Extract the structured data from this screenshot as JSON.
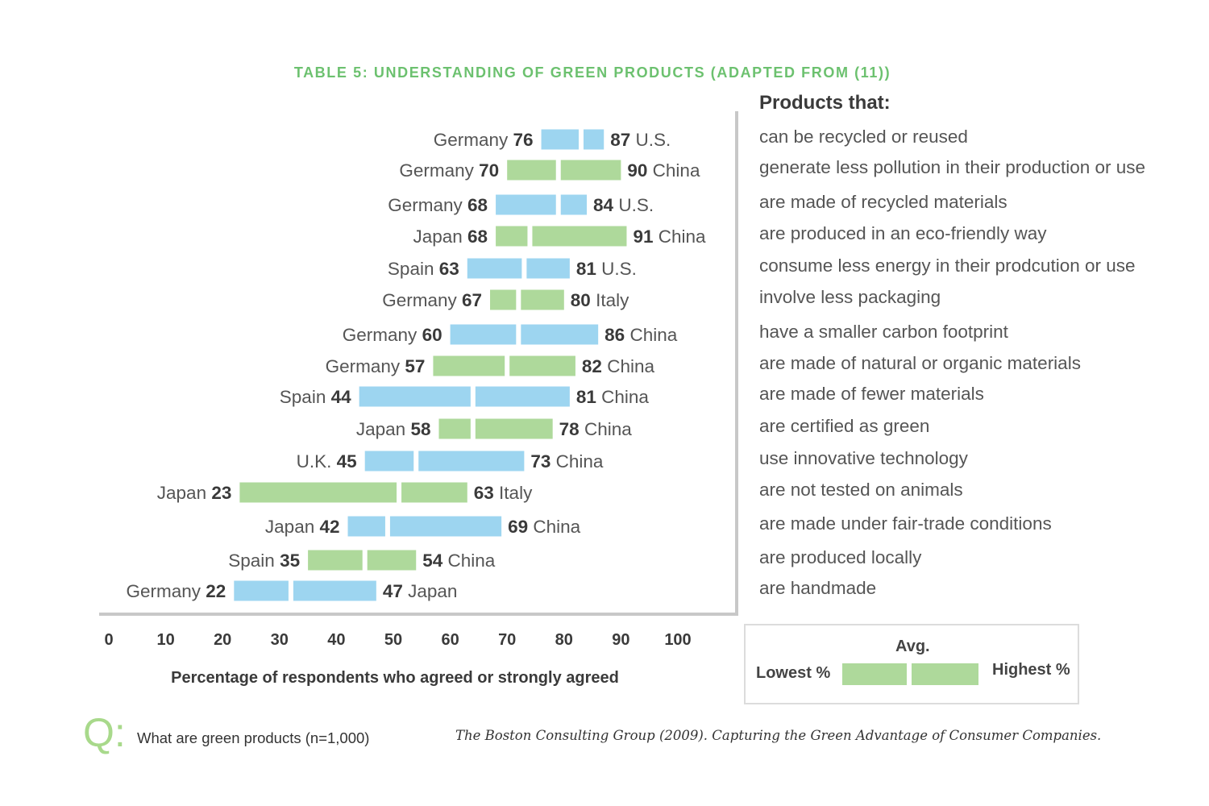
{
  "title": "TABLE 5: UNDERSTANDING OF GREEN PRODUCTS (ADAPTED FROM (11))",
  "panel_header": "Products that:",
  "legend": {
    "avg": "Avg.",
    "lowest": "Lowest %",
    "highest": "Highest %"
  },
  "question": {
    "glyph": "Q:",
    "text": "What are green products (n=1,000)"
  },
  "source": "The Boston Consulting Group (2009). Capturing the Green Advantage of Consumer Companies.",
  "colors": {
    "blue": "#9dd5f0",
    "green": "#aed99b",
    "title": "#6cc16f",
    "axis": "#c8c8c8"
  },
  "chart_data": {
    "type": "bar",
    "orientation": "horizontal",
    "title": "TABLE 5: UNDERSTANDING OF GREEN PRODUCTS (ADAPTED FROM (11))",
    "xlabel": "Percentage of respondents who agreed or strongly agreed",
    "ylabel": "",
    "xlim": [
      0,
      100
    ],
    "xticks": [
      0,
      10,
      20,
      30,
      40,
      50,
      60,
      70,
      80,
      90,
      100
    ],
    "grid": false,
    "rows": [
      {
        "category": "can be recycled or reused",
        "low_country": "Germany",
        "low": 76,
        "avg": 83,
        "high": 87,
        "high_country": "U.S.",
        "color": "blue"
      },
      {
        "category": "generate less pollution in their production or use",
        "low_country": "Germany",
        "low": 70,
        "avg": 79,
        "high": 90,
        "high_country": "China",
        "color": "green"
      },
      {
        "category": "are made of recycled materials",
        "low_country": "Germany",
        "low": 68,
        "avg": 79,
        "high": 84,
        "high_country": "U.S.",
        "color": "blue"
      },
      {
        "category": "are produced in an eco-friendly way",
        "low_country": "Japan",
        "low": 68,
        "avg": 74,
        "high": 91,
        "high_country": "China",
        "color": "green"
      },
      {
        "category": "consume less energy in their prodcution or use",
        "low_country": "Spain",
        "low": 63,
        "avg": 73,
        "high": 81,
        "high_country": "U.S.",
        "color": "blue"
      },
      {
        "category": "involve less packaging",
        "low_country": "Germany",
        "low": 67,
        "avg": 72,
        "high": 80,
        "high_country": "Italy",
        "color": "green"
      },
      {
        "category": "have a smaller carbon footprint",
        "low_country": "Germany",
        "low": 60,
        "avg": 72,
        "high": 86,
        "high_country": "China",
        "color": "blue"
      },
      {
        "category": "are made of natural or organic materials",
        "low_country": "Germany",
        "low": 57,
        "avg": 70,
        "high": 82,
        "high_country": "China",
        "color": "green"
      },
      {
        "category": "are made of fewer materials",
        "low_country": "Spain",
        "low": 44,
        "avg": 64,
        "high": 81,
        "high_country": "China",
        "color": "blue"
      },
      {
        "category": "are certified as green",
        "low_country": "Japan",
        "low": 58,
        "avg": 64,
        "high": 78,
        "high_country": "China",
        "color": "green"
      },
      {
        "category": "use innovative technology",
        "low_country": "U.K.",
        "low": 45,
        "avg": 54,
        "high": 73,
        "high_country": "China",
        "color": "blue"
      },
      {
        "category": "are not tested on animals",
        "low_country": "Japan",
        "low": 23,
        "avg": 51,
        "high": 63,
        "high_country": "Italy",
        "color": "green"
      },
      {
        "category": "are made under fair-trade conditions",
        "low_country": "Japan",
        "low": 42,
        "avg": 49,
        "high": 69,
        "high_country": "China",
        "color": "blue"
      },
      {
        "category": "are produced locally",
        "low_country": "Spain",
        "low": 35,
        "avg": 45,
        "high": 54,
        "high_country": "China",
        "color": "green"
      },
      {
        "category": "are handmade",
        "low_country": "Germany",
        "low": 22,
        "avg": 32,
        "high": 47,
        "high_country": "Japan",
        "color": "blue"
      }
    ]
  }
}
